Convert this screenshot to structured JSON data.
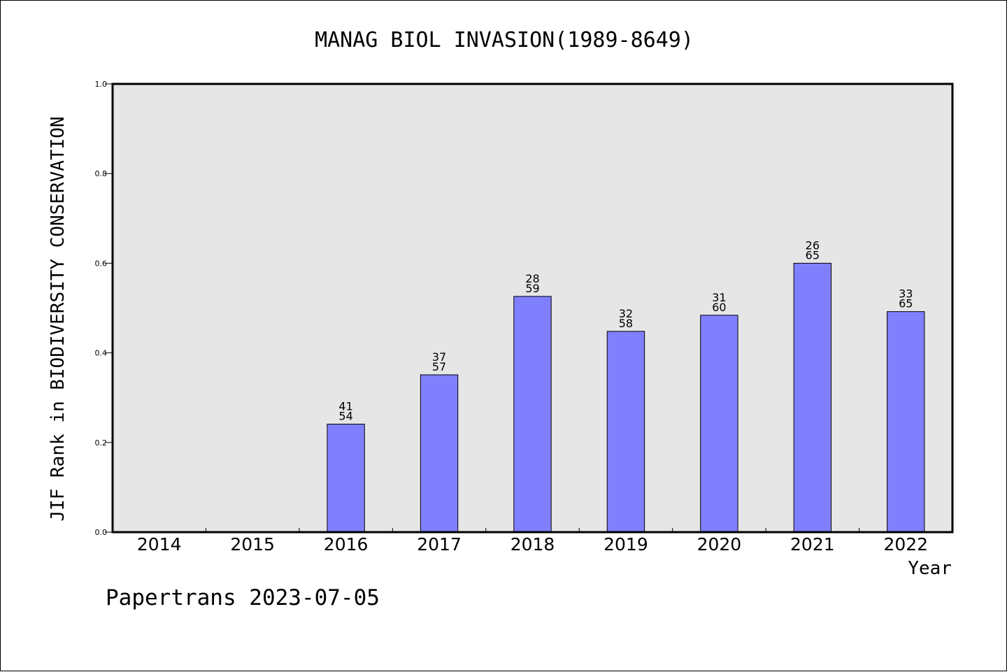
{
  "chart_data": {
    "type": "bar",
    "title": "MANAG BIOL INVASION(1989-8649)",
    "xlabel": "Year",
    "ylabel": "JIF Rank in BIODIVERSITY CONSERVATION",
    "ylim": [
      0,
      1.0
    ],
    "yticks": [
      "0.0",
      "0.2",
      "0.4",
      "0.6",
      "0.8",
      "1.0"
    ],
    "categories": [
      "2014",
      "2015",
      "2016",
      "2017",
      "2018",
      "2019",
      "2020",
      "2021",
      "2022"
    ],
    "values": [
      null,
      null,
      0.241,
      0.351,
      0.526,
      0.448,
      0.484,
      0.6,
      0.492
    ],
    "labels": [
      null,
      null,
      {
        "rank": "41",
        "total": "54"
      },
      {
        "rank": "37",
        "total": "57"
      },
      {
        "rank": "28",
        "total": "59"
      },
      {
        "rank": "32",
        "total": "58"
      },
      {
        "rank": "31",
        "total": "60"
      },
      {
        "rank": "26",
        "total": "65"
      },
      {
        "rank": "33",
        "total": "65"
      }
    ],
    "bar_color": "#8080ff",
    "plot_background": "#e6e6e6",
    "grid": false,
    "legend": "none"
  },
  "footer": "Papertrans 2023-07-05"
}
